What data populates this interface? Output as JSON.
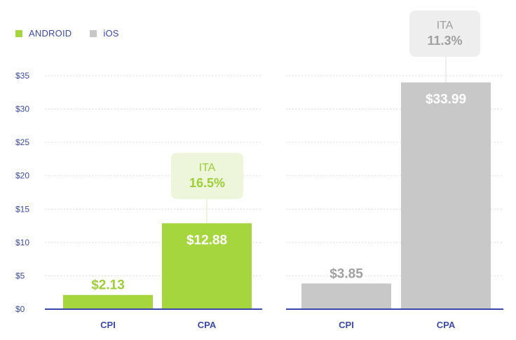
{
  "legend": [
    {
      "label": "ANDROID",
      "color": "#a5d63d"
    },
    {
      "label": "iOS",
      "color": "#c8c8c8"
    }
  ],
  "colors": {
    "axis": "#3949ab",
    "tick_text": "#3949ab",
    "grid": "#cfd2d8",
    "value_on_bar": "#ffffff",
    "callout_text_android": "#9ccf35",
    "callout_bg_android": "#edf6da",
    "callout_text_ios": "#a0a0a0",
    "callout_bg_ios": "#eeeeee"
  },
  "chart_data": [
    {
      "type": "bar",
      "categories": [
        "CPI",
        "CPA"
      ],
      "series": [
        {
          "name": "ANDROID",
          "values": [
            2.13,
            12.88
          ],
          "color": "#a5d63d"
        }
      ],
      "value_labels": [
        "$2.13",
        "$12.88"
      ],
      "y_ticks": [
        0,
        5,
        10,
        15,
        20,
        25,
        30,
        35
      ],
      "y_tick_labels": [
        "$0",
        "$5",
        "$10",
        "$15",
        "$20",
        "$25",
        "$30",
        "$35"
      ],
      "ylim": [
        0,
        35
      ],
      "grid": true,
      "annotation": {
        "category": "CPA",
        "label": "ITA",
        "value": "16.5%"
      }
    },
    {
      "type": "bar",
      "categories": [
        "CPI",
        "CPA"
      ],
      "series": [
        {
          "name": "iOS",
          "values": [
            3.85,
            33.99
          ],
          "color": "#c8c8c8"
        }
      ],
      "value_labels": [
        "$3.85",
        "$33.99"
      ],
      "ylim": [
        0,
        35
      ],
      "grid": true,
      "annotation": {
        "category": "CPA",
        "label": "ITA",
        "value": "11.3%"
      }
    }
  ]
}
